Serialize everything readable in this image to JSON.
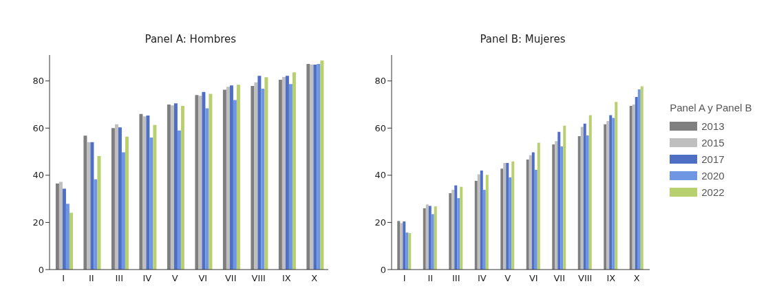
{
  "chart_data": [
    {
      "type": "bar",
      "title": "Panel A: Hombres",
      "categories": [
        "I",
        "II",
        "III",
        "IV",
        "V",
        "VI",
        "VII",
        "VIII",
        "IX",
        "X"
      ],
      "ylim": [
        0,
        91
      ],
      "yticks": [
        0,
        20,
        40,
        60,
        80
      ],
      "legend": "right",
      "series": [
        {
          "name": "2013",
          "color": "#7f7f7f",
          "values": [
            36.5,
            56.8,
            60,
            66,
            70,
            74,
            76.3,
            77.9,
            80.5,
            87.2
          ]
        },
        {
          "name": "2015",
          "color": "#bfbfbf",
          "values": [
            37.2,
            54,
            61.6,
            65,
            69.6,
            73.7,
            77.5,
            79.4,
            81.7,
            86.9
          ]
        },
        {
          "name": "2017",
          "color": "#4f6fc4",
          "values": [
            34.3,
            54,
            60.3,
            65.3,
            70.5,
            75.3,
            78.1,
            82.2,
            82.2,
            86.9
          ]
        },
        {
          "name": "2020",
          "color": "#6f96e3",
          "values": [
            27.9,
            38.3,
            49.7,
            56,
            59,
            68.4,
            71.9,
            76.7,
            78.7,
            87.2
          ]
        },
        {
          "name": "2022",
          "color": "#b8d06f",
          "values": [
            24.1,
            48.1,
            56.4,
            61.3,
            69.4,
            74.5,
            78.4,
            81.6,
            83.6,
            88.7
          ]
        }
      ]
    },
    {
      "type": "bar",
      "title": "Panel B: Mujeres",
      "categories": [
        "I",
        "II",
        "III",
        "IV",
        "V",
        "VI",
        "VII",
        "VIII",
        "IX",
        "X"
      ],
      "ylim": [
        0,
        91
      ],
      "yticks": [
        0,
        20,
        40,
        60,
        80
      ],
      "legend": "right",
      "legend_title": "Panel A y Panel B",
      "series": [
        {
          "name": "2013",
          "color": "#7f7f7f",
          "values": [
            20.6,
            26,
            32.4,
            37.6,
            42.8,
            46.7,
            53.1,
            56.6,
            61.6,
            69.4
          ]
        },
        {
          "name": "2015",
          "color": "#bfbfbf",
          "values": [
            19.7,
            27.6,
            33.8,
            40.4,
            45.2,
            48.5,
            54.5,
            60.5,
            63,
            70
          ]
        },
        {
          "name": "2017",
          "color": "#4f6fc4",
          "values": [
            20.4,
            27,
            35.7,
            42,
            45.2,
            49.7,
            58.4,
            61.9,
            65.5,
            73.2
          ]
        },
        {
          "name": "2020",
          "color": "#6f96e3",
          "values": [
            15.7,
            23.5,
            30.3,
            33.8,
            39.1,
            42.3,
            52.2,
            56.9,
            64.3,
            76.4
          ]
        },
        {
          "name": "2022",
          "color": "#b8d06f",
          "values": [
            15.5,
            26.8,
            35.1,
            40.2,
            45.9,
            53.8,
            61,
            65.5,
            71.1,
            77.7
          ]
        }
      ]
    }
  ]
}
